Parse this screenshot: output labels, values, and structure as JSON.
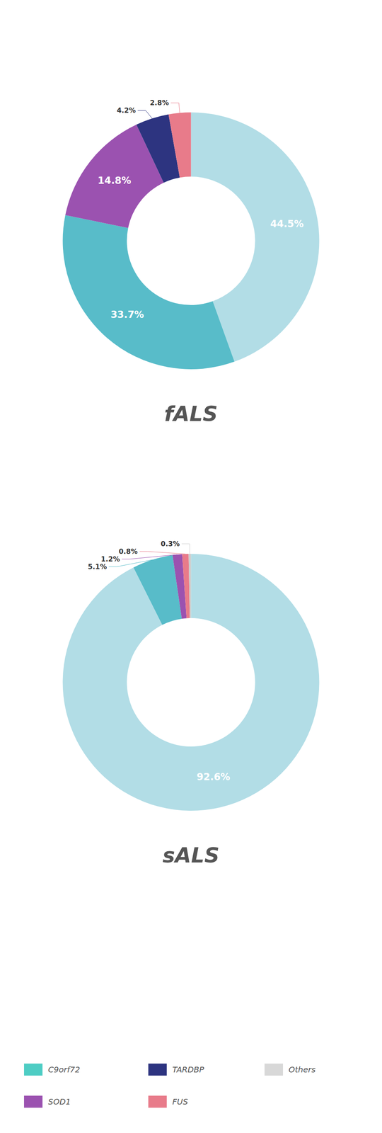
{
  "chart_data": [
    {
      "type": "pie",
      "title": "fALS",
      "values": [
        44.5,
        33.7,
        14.8,
        4.2,
        2.8
      ],
      "value_labels": [
        "44.5%",
        "33.7%",
        "14.8%",
        "4.2%",
        "2.8%"
      ],
      "colors": [
        "#b2dde6",
        "#58bcc9",
        "#9b52b0",
        "#2d3480",
        "#e87b8a"
      ],
      "data_labels": true
    },
    {
      "type": "pie",
      "title": "sALS",
      "values": [
        92.6,
        5.1,
        1.2,
        0.8,
        0.3
      ],
      "value_labels": [
        "92.6%",
        "5.1%",
        "1.2%",
        "0.8%",
        "0.3%"
      ],
      "colors": [
        "#b2dde6",
        "#58bcc9",
        "#9b52b0",
        "#e87b8a",
        "#cccccc"
      ],
      "data_labels": true
    }
  ],
  "legend_entries": [
    {
      "name": "C9orf72",
      "color": "#4ecdc4"
    },
    {
      "name": "TARDBP",
      "color": "#2d3480"
    },
    {
      "name": "Others",
      "color": "#d8d8d8"
    },
    {
      "name": "SOD1",
      "color": "#9b52b0"
    },
    {
      "name": "FUS",
      "color": "#e87b8a"
    }
  ]
}
